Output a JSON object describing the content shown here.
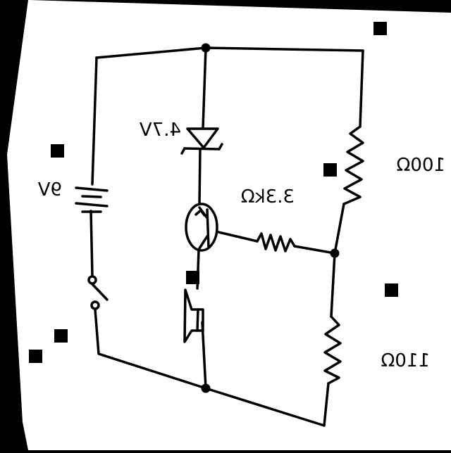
{
  "diagram": {
    "components": {
      "battery": {
        "label": "9V"
      },
      "diode": {
        "label": "4.7V"
      },
      "resistor_top": {
        "label": "100Ω"
      },
      "resistor_base": {
        "label": "3.3kΩ"
      },
      "resistor_bottom": {
        "label": "110Ω"
      },
      "transistor": {
        "label": ""
      },
      "switch": {
        "label": ""
      },
      "speaker": {
        "label": ""
      }
    },
    "colors": {
      "paper": "#ffffff",
      "ink": "#000000",
      "background": "#000000"
    }
  }
}
